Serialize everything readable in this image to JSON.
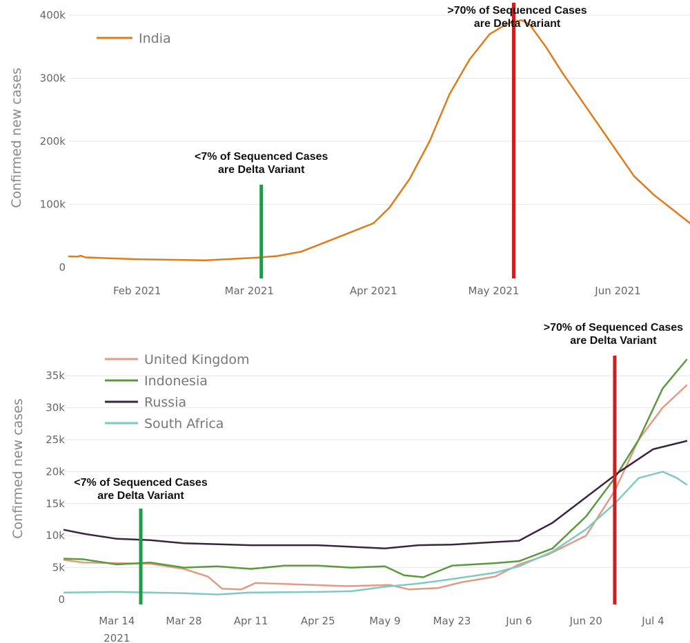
{
  "chart_data": [
    {
      "type": "line",
      "ylabel": "Confirmed new cases",
      "ylim": [
        0,
        400000
      ],
      "yticks": [
        0,
        100000,
        200000,
        300000,
        400000
      ],
      "ytick_labels": [
        "0",
        "100k",
        "200k",
        "300k",
        "400k"
      ],
      "xrange": [
        "2021-01-15",
        "2021-06-19"
      ],
      "xticks": [
        "2021-02-01",
        "2021-03-01",
        "2021-04-01",
        "2021-05-01",
        "2021-06-01"
      ],
      "xtick_labels": [
        "Feb 2021",
        "Mar 2021",
        "Apr 2021",
        "May 2021",
        "Jun 2021"
      ],
      "grid": "horizontal",
      "legend_position": "top-left",
      "series": [
        {
          "name": "India",
          "color": "#e07b1a",
          "points": [
            [
              "2021-01-15",
              17500
            ],
            [
              "2021-01-17",
              17000
            ],
            [
              "2021-01-18",
              18500
            ],
            [
              "2021-01-19",
              16000
            ],
            [
              "2021-01-25",
              14500
            ],
            [
              "2021-02-01",
              13000
            ],
            [
              "2021-02-10",
              12000
            ],
            [
              "2021-02-18",
              11200
            ],
            [
              "2021-02-25",
              13500
            ],
            [
              "2021-03-03",
              15500
            ],
            [
              "2021-03-08",
              18000
            ],
            [
              "2021-03-14",
              25000
            ],
            [
              "2021-03-20",
              40000
            ],
            [
              "2021-03-26",
              55000
            ],
            [
              "2021-04-01",
              70000
            ],
            [
              "2021-04-05",
              95000
            ],
            [
              "2021-04-10",
              140000
            ],
            [
              "2021-04-15",
              200000
            ],
            [
              "2021-04-20",
              275000
            ],
            [
              "2021-04-25",
              330000
            ],
            [
              "2021-04-30",
              370000
            ],
            [
              "2021-05-04",
              385000
            ],
            [
              "2021-05-06",
              390000
            ],
            [
              "2021-05-08",
              392000
            ],
            [
              "2021-05-10",
              385000
            ],
            [
              "2021-05-14",
              350000
            ],
            [
              "2021-05-18",
              310000
            ],
            [
              "2021-05-24",
              255000
            ],
            [
              "2021-05-30",
              200000
            ],
            [
              "2021-06-05",
              145000
            ],
            [
              "2021-06-10",
              115000
            ],
            [
              "2021-06-15",
              90000
            ],
            [
              "2021-06-19",
              70000
            ]
          ]
        }
      ],
      "annotations": [
        {
          "date": "2021-03-04",
          "color": "#1f9b4a",
          "text": [
            "<7% of Sequenced Cases",
            "are Delta Variant"
          ]
        },
        {
          "date": "2021-05-06",
          "color": "#cc1f1f",
          "text": [
            ">70% of Sequenced Cases",
            "are Delta Variant"
          ]
        }
      ]
    },
    {
      "type": "line",
      "ylabel": "Confirmed new cases",
      "ylim": [
        0,
        37500
      ],
      "yticks": [
        0,
        5000,
        10000,
        15000,
        20000,
        25000,
        30000,
        35000
      ],
      "ytick_labels": [
        "0",
        "5k",
        "10k",
        "15k",
        "20k",
        "25k",
        "30k",
        "35k"
      ],
      "xrange": [
        "2021-03-03",
        "2021-07-11"
      ],
      "xticks": [
        "2021-03-14",
        "2021-03-28",
        "2021-04-11",
        "2021-04-25",
        "2021-05-09",
        "2021-05-23",
        "2021-06-06",
        "2021-06-20",
        "2021-07-04"
      ],
      "xtick_labels": [
        "Mar 14",
        "Mar 28",
        "Apr 11",
        "Apr 25",
        "May 9",
        "May 23",
        "Jun 6",
        "Jun 20",
        "Jul 4"
      ],
      "xtick_year_label": "2021",
      "grid": "horizontal",
      "legend_position": "top-left",
      "series": [
        {
          "name": "United Kingdom",
          "color": "#e39a83",
          "points": [
            [
              "2021-03-03",
              6200
            ],
            [
              "2021-03-07",
              5800
            ],
            [
              "2021-03-14",
              5700
            ],
            [
              "2021-03-21",
              5600
            ],
            [
              "2021-03-28",
              4800
            ],
            [
              "2021-04-02",
              3600
            ],
            [
              "2021-04-05",
              1700
            ],
            [
              "2021-04-09",
              1600
            ],
            [
              "2021-04-12",
              2600
            ],
            [
              "2021-04-20",
              2400
            ],
            [
              "2021-05-01",
              2100
            ],
            [
              "2021-05-10",
              2300
            ],
            [
              "2021-05-14",
              1600
            ],
            [
              "2021-05-20",
              1800
            ],
            [
              "2021-05-25",
              2700
            ],
            [
              "2021-06-01",
              3600
            ],
            [
              "2021-06-06",
              5500
            ],
            [
              "2021-06-12",
              7000
            ],
            [
              "2021-06-20",
              10000
            ],
            [
              "2021-06-26",
              17000
            ],
            [
              "2021-07-01",
              25000
            ],
            [
              "2021-07-06",
              30000
            ],
            [
              "2021-07-11",
              33500
            ]
          ]
        },
        {
          "name": "Indonesia",
          "color": "#5a9a3c",
          "points": [
            [
              "2021-03-03",
              6400
            ],
            [
              "2021-03-07",
              6300
            ],
            [
              "2021-03-14",
              5500
            ],
            [
              "2021-03-21",
              5800
            ],
            [
              "2021-03-28",
              5000
            ],
            [
              "2021-04-04",
              5200
            ],
            [
              "2021-04-11",
              4800
            ],
            [
              "2021-04-18",
              5300
            ],
            [
              "2021-04-25",
              5300
            ],
            [
              "2021-05-02",
              5000
            ],
            [
              "2021-05-09",
              5200
            ],
            [
              "2021-05-13",
              3800
            ],
            [
              "2021-05-17",
              3500
            ],
            [
              "2021-05-23",
              5300
            ],
            [
              "2021-06-01",
              5700
            ],
            [
              "2021-06-06",
              6000
            ],
            [
              "2021-06-13",
              8000
            ],
            [
              "2021-06-20",
              13000
            ],
            [
              "2021-06-26",
              19000
            ],
            [
              "2021-07-01",
              25000
            ],
            [
              "2021-07-06",
              33000
            ],
            [
              "2021-07-11",
              37500
            ]
          ]
        },
        {
          "name": "Russia",
          "color": "#3b2241",
          "points": [
            [
              "2021-03-03",
              10900
            ],
            [
              "2021-03-07",
              10300
            ],
            [
              "2021-03-14",
              9500
            ],
            [
              "2021-03-21",
              9300
            ],
            [
              "2021-03-28",
              8800
            ],
            [
              "2021-04-11",
              8500
            ],
            [
              "2021-04-25",
              8500
            ],
            [
              "2021-05-09",
              8000
            ],
            [
              "2021-05-16",
              8500
            ],
            [
              "2021-05-23",
              8600
            ],
            [
              "2021-06-01",
              9000
            ],
            [
              "2021-06-06",
              9200
            ],
            [
              "2021-06-13",
              12000
            ],
            [
              "2021-06-20",
              16000
            ],
            [
              "2021-06-27",
              20000
            ],
            [
              "2021-07-04",
              23500
            ],
            [
              "2021-07-11",
              24800
            ]
          ]
        },
        {
          "name": "South Africa",
          "color": "#7fc9c2",
          "points": [
            [
              "2021-03-03",
              1100
            ],
            [
              "2021-03-14",
              1200
            ],
            [
              "2021-03-28",
              1000
            ],
            [
              "2021-04-04",
              800
            ],
            [
              "2021-04-11",
              1100
            ],
            [
              "2021-04-25",
              1200
            ],
            [
              "2021-05-02",
              1300
            ],
            [
              "2021-05-09",
              2000
            ],
            [
              "2021-05-16",
              2500
            ],
            [
              "2021-05-23",
              3200
            ],
            [
              "2021-06-01",
              4200
            ],
            [
              "2021-06-06",
              5200
            ],
            [
              "2021-06-13",
              7500
            ],
            [
              "2021-06-20",
              11000
            ],
            [
              "2021-06-26",
              15000
            ],
            [
              "2021-07-01",
              19000
            ],
            [
              "2021-07-06",
              20000
            ],
            [
              "2021-07-09",
              19000
            ],
            [
              "2021-07-11",
              18000
            ]
          ]
        }
      ],
      "annotations": [
        {
          "date": "2021-03-19",
          "color": "#1f9b4a",
          "text": [
            "<7% of Sequenced Cases",
            "are Delta Variant"
          ]
        },
        {
          "date": "2021-06-26",
          "color": "#cc1f1f",
          "text": [
            ">70% of Sequenced Cases",
            "are Delta Variant"
          ]
        }
      ]
    }
  ]
}
